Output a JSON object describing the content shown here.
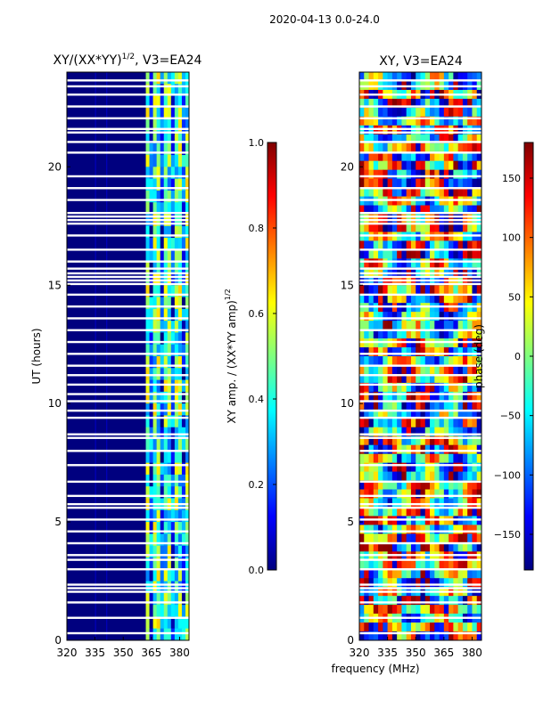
{
  "figure": {
    "suptitle": "2020-04-13 0.0-24.0",
    "shared_xlabel": "frequency (MHz)"
  },
  "colors": {
    "background_fill": "#00007f",
    "flag_row": "#ffffff",
    "jet_stops": [
      "#00007f",
      "#0000ff",
      "#007fff",
      "#00ffff",
      "#7fff7f",
      "#ffff00",
      "#ff7f00",
      "#ff0000",
      "#7f0000"
    ]
  },
  "chart_data": [
    {
      "type": "heatmap",
      "title_main": "XY/(XX*YY)",
      "title_exp": "1/2",
      "title_rest": ", V3=EA24",
      "ylabel": "UT (hours)",
      "xlim": [
        320,
        385
      ],
      "ylim": [
        0,
        24
      ],
      "xticks": [
        320,
        335,
        350,
        365,
        380
      ],
      "xtick_labels": [
        "320",
        "335",
        "350",
        "365",
        "380"
      ],
      "yticks": [
        0,
        5,
        10,
        15,
        20
      ],
      "ytick_labels": [
        "0",
        "5",
        "10",
        "15",
        "20"
      ],
      "colorbar": {
        "label_main": "XY amp. / (XX*YY amp)",
        "label_exp": "1/2",
        "range": [
          0.0,
          1.0
        ],
        "ticks": [
          0.0,
          0.2,
          0.4,
          0.6,
          0.8,
          1.0
        ],
        "tick_labels": [
          "0.0",
          "0.2",
          "0.4",
          "0.6",
          "0.8",
          "1.0"
        ]
      },
      "quiet_band_mhz": [
        320,
        362
      ],
      "active_band_mhz": [
        362,
        385
      ],
      "active_band_typical_value": 0.45,
      "quiet_band_typical_value": 0.05
    },
    {
      "type": "heatmap",
      "title": "XY, V3=EA24",
      "xlim": [
        320,
        385
      ],
      "ylim": [
        0,
        24
      ],
      "xticks": [
        320,
        335,
        350,
        365,
        380
      ],
      "xtick_labels": [
        "320",
        "335",
        "350",
        "365",
        "380"
      ],
      "yticks": [
        0,
        5,
        10,
        15,
        20
      ],
      "ytick_labels": [
        "0",
        "5",
        "10",
        "15",
        "20"
      ],
      "colorbar": {
        "label": "phase (deg)",
        "range": [
          -180,
          180
        ],
        "ticks": [
          -150,
          -100,
          -50,
          0,
          50,
          100,
          150
        ],
        "tick_labels": [
          "−150",
          "−100",
          "−50",
          "0",
          "50",
          "100",
          "150"
        ]
      }
    }
  ],
  "flagged_ut_hours": [
    0.3,
    0.95,
    1.6,
    2.05,
    2.2,
    2.35,
    3.0,
    3.4,
    3.6,
    4.1,
    4.6,
    5.1,
    5.6,
    5.75,
    6.1,
    6.7,
    7.4,
    8.0,
    8.55,
    8.7,
    9.4,
    9.7,
    10.1,
    10.4,
    10.8,
    11.2,
    11.6,
    12.1,
    12.6,
    13.1,
    13.6,
    14.1,
    14.6,
    15.05,
    15.2,
    15.35,
    15.5,
    15.7,
    16.0,
    16.5,
    17.1,
    17.6,
    17.75,
    17.9,
    18.05,
    18.6,
    19.1,
    19.6,
    20.6,
    21.05,
    21.45,
    21.6,
    22.05,
    22.55,
    23.05,
    23.4,
    23.65
  ]
}
